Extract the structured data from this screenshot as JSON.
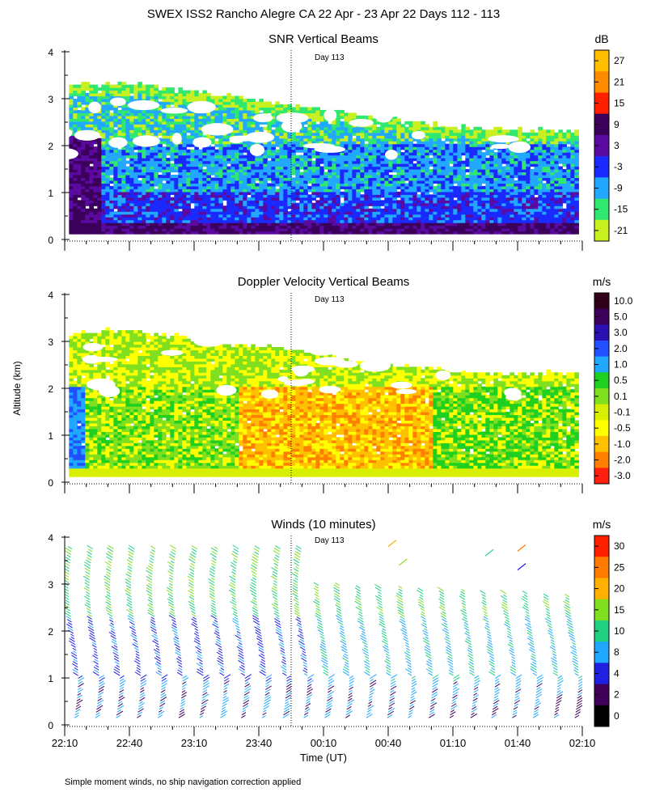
{
  "figure": {
    "title": "SWEX ISS2 Rancho Alegre CA  22 Apr - 23 Apr 22 Days 112 - 113",
    "ylabel": "Altitude (km)",
    "xlabel": "Time (UT)",
    "footnote": "Simple moment winds, no ship navigation correction applied"
  },
  "chart_data": [
    {
      "type": "heatmap",
      "title": "SNR Vertical Beams",
      "ylabel": "Altitude (km)",
      "ylim": [
        0,
        4
      ],
      "yticks": [
        "0",
        "1",
        "2",
        "3",
        "4"
      ],
      "marker_label": "Day 113",
      "marker_time": "23:55",
      "colorbar": {
        "unit": "dB",
        "labels": [
          "27",
          "21",
          "15",
          "9",
          "3",
          "-3",
          "-9",
          "-15",
          "-21"
        ],
        "colors": [
          "#ffbf00",
          "#ff8c00",
          "#ff2000",
          "#3a005a",
          "#5a0aa0",
          "#1a2aff",
          "#22a8ff",
          "#30e870",
          "#c8f020"
        ]
      },
      "top_km": [
        3.3,
        3.3,
        3.3,
        3.2,
        3.1,
        3.0,
        2.9,
        2.8,
        2.7,
        2.6,
        2.5,
        2.4,
        2.35,
        2.3,
        2.3,
        2.3
      ]
    },
    {
      "type": "heatmap",
      "title": "Doppler Velocity Vertical Beams",
      "ylabel": "Altitude (km)",
      "ylim": [
        0,
        4
      ],
      "yticks": [
        "0",
        "1",
        "2",
        "3",
        "4"
      ],
      "marker_label": "Day 113",
      "marker_time": "23:55",
      "colorbar": {
        "unit": "m/s",
        "labels": [
          "10.0",
          "5.0",
          "3.0",
          "2.0",
          "1.0",
          "0.5",
          "0.1",
          "-0.1",
          "-0.5",
          "-1.0",
          "-2.0",
          "-3.0"
        ],
        "colors": [
          "#300018",
          "#3a005a",
          "#2a10b0",
          "#2050ff",
          "#20a8ff",
          "#20d020",
          "#80e020",
          "#d8f000",
          "#ffff00",
          "#ffc000",
          "#ff8000",
          "#ff2010"
        ]
      },
      "top_km": [
        3.1,
        3.2,
        3.2,
        3.1,
        3.0,
        2.9,
        2.85,
        2.75,
        2.6,
        2.5,
        2.45,
        2.35,
        2.3,
        2.3,
        2.3,
        2.3
      ]
    },
    {
      "type": "barbs",
      "title": "Winds (10 minutes)",
      "ylabel": "Altitude (km)",
      "ylim": [
        0,
        4
      ],
      "yticks": [
        "0",
        "1",
        "2",
        "3",
        "4"
      ],
      "marker_label": "Day 113",
      "marker_time": "23:55",
      "colorbar": {
        "unit": "m/s",
        "labels": [
          "30",
          "25",
          "20",
          "15",
          "10",
          "8",
          "4",
          "2",
          "0"
        ],
        "colors": [
          "#ff2000",
          "#ff7a00",
          "#ffb000",
          "#80e020",
          "#20d080",
          "#20a8ff",
          "#2020e0",
          "#40005a",
          "#000000"
        ]
      },
      "profiles": 25,
      "top_km": 3.8
    }
  ],
  "time_axis": {
    "range_minutes": [
      0,
      240
    ],
    "ticks": [
      "22:10",
      "22:40",
      "23:10",
      "23:40",
      "00:10",
      "00:40",
      "01:10",
      "01:40",
      "02:10"
    ]
  }
}
